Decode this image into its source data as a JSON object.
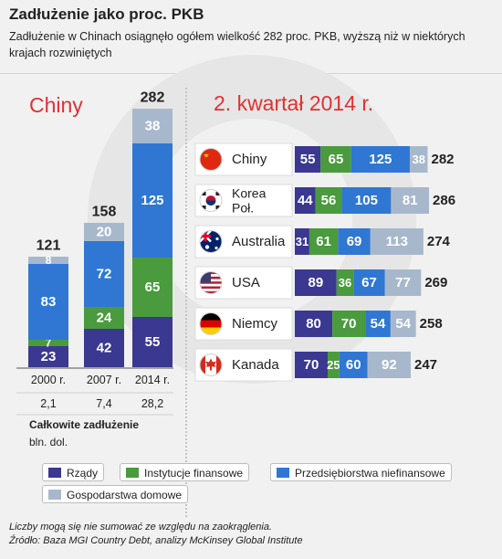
{
  "header": {
    "title": "Zadłużenie jako proc. PKB",
    "subtitle": "Zadłużenie w Chinach osiągnęło ogółem wielkość 282 proc. PKB, wyższą niż w niektórych krajach rozwiniętych"
  },
  "colors": {
    "rzady": "#3a3891",
    "instytucje": "#4a9a3e",
    "przedsiebiorstwa": "#2f77d3",
    "gospodarstwa": "#a8b8cc",
    "accent": "#e03131"
  },
  "legend": [
    {
      "label": "Rządy",
      "color_key": "rzady"
    },
    {
      "label": "Instytucje finansowe",
      "color_key": "instytucje"
    },
    {
      "label": "Przedsiębiorstwa niefinansowe",
      "color_key": "przedsiebiorstwa"
    },
    {
      "label": "Gospodarstwa domowe",
      "color_key": "gospodarstwa"
    }
  ],
  "total_debt_label": "Całkowite zadłużenie",
  "total_debt_unit": "bln. dol.",
  "footnote": "Liczby mogą się nie sumować ze względu na zaokrąglenia.",
  "source": "Źródło: Baza MGI Country Debt, analizy McKinsey Global Institute",
  "chart_data": [
    {
      "type": "bar",
      "stacked": true,
      "orientation": "vertical",
      "title": "Chiny",
      "categories": [
        "2000 r.",
        "2007 r.",
        "2014 r."
      ],
      "series": [
        {
          "name": "Rządy",
          "values": [
            23,
            42,
            55
          ]
        },
        {
          "name": "Instytucje finansowe",
          "values": [
            7,
            24,
            65
          ]
        },
        {
          "name": "Przedsiębiorstwa niefinansowe",
          "values": [
            83,
            72,
            125
          ]
        },
        {
          "name": "Gospodarstwa domowe",
          "values": [
            8,
            20,
            38
          ]
        }
      ],
      "totals": [
        121,
        158,
        282
      ],
      "total_debt": [
        "2,1",
        "7,4",
        "28,2"
      ]
    },
    {
      "type": "bar",
      "stacked": true,
      "orientation": "horizontal",
      "title": "2. kwartał 2014 r.",
      "categories": [
        "Chiny",
        "Korea Poł.",
        "Australia",
        "USA",
        "Niemcy",
        "Kanada"
      ],
      "flags": [
        "china-flag-icon",
        "south-korea-flag-icon",
        "australia-flag-icon",
        "usa-flag-icon",
        "germany-flag-icon",
        "canada-flag-icon"
      ],
      "series": [
        {
          "name": "Rządy",
          "values": [
            55,
            44,
            31,
            89,
            80,
            70
          ]
        },
        {
          "name": "Instytucje finansowe",
          "values": [
            65,
            56,
            61,
            36,
            70,
            25
          ]
        },
        {
          "name": "Przedsiębiorstwa niefinansowe",
          "values": [
            125,
            105,
            69,
            67,
            54,
            60
          ]
        },
        {
          "name": "Gospodarstwa domowe",
          "values": [
            38,
            81,
            113,
            77,
            54,
            92
          ]
        }
      ],
      "totals": [
        282,
        286,
        274,
        269,
        258,
        247
      ]
    }
  ]
}
